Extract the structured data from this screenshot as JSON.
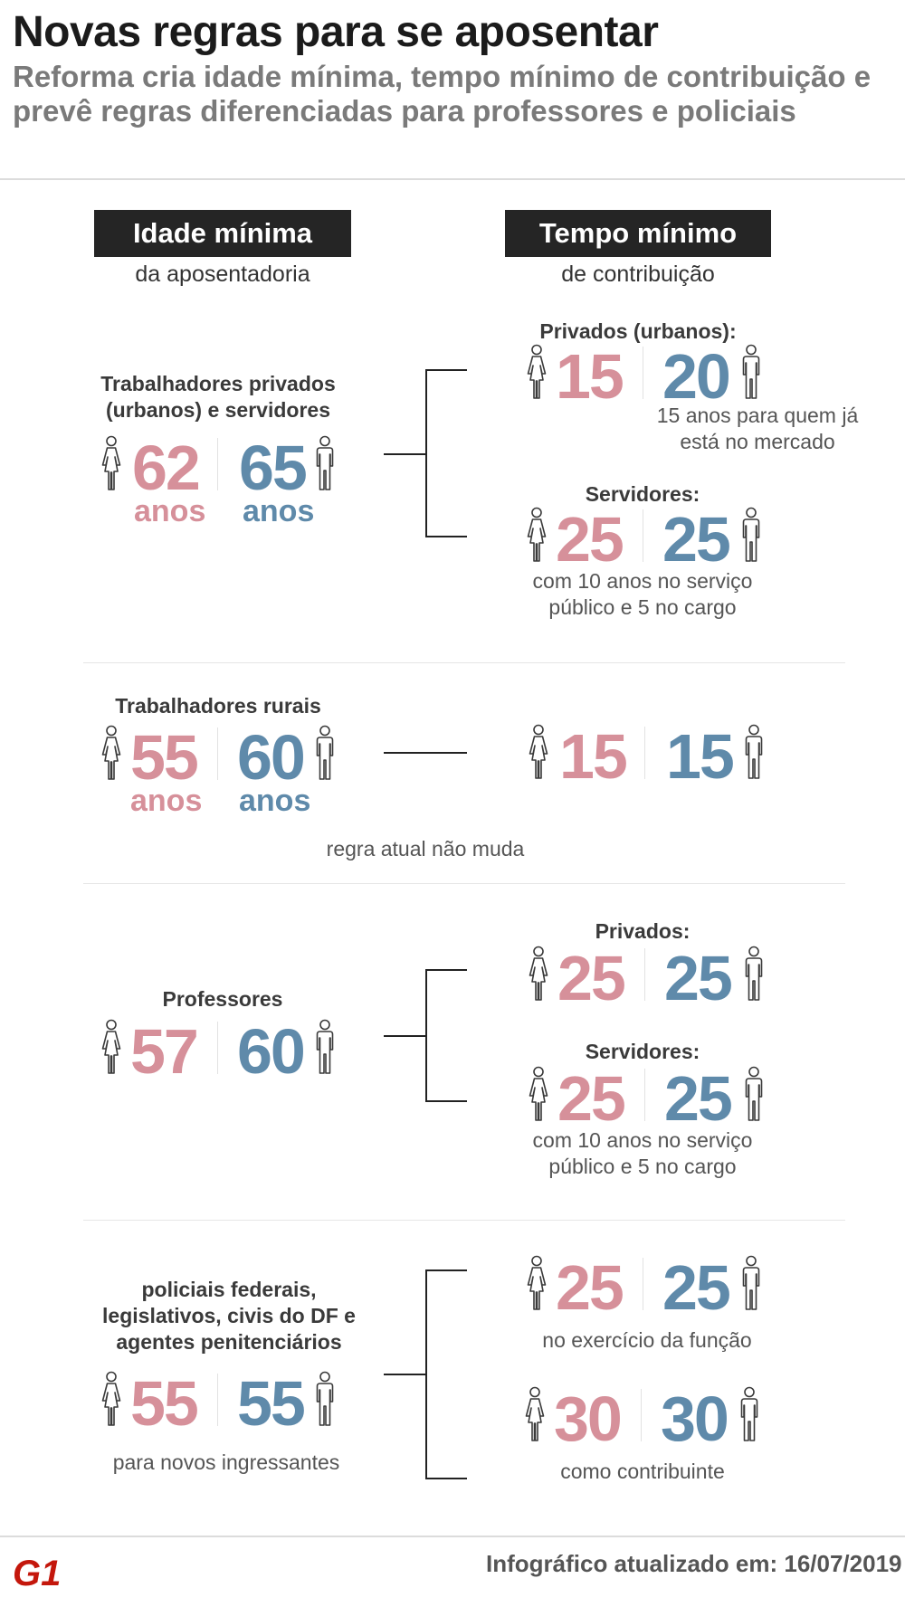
{
  "header": {
    "title": "Novas regras para se aposentar",
    "subtitle": "Reforma cria idade mínima, tempo mínimo de contribuição e prevê regras diferenciadas para professores e policiais"
  },
  "columns": {
    "age": {
      "label": "Idade mínima",
      "sub": "da aposentadoria"
    },
    "contrib": {
      "label": "Tempo mínimo",
      "sub": "de contribuição"
    }
  },
  "sections": {
    "urban": {
      "label": "Trabalhadores privados (urbanos) e servidores",
      "woman_age": "62",
      "man_age": "65",
      "unit": "anos",
      "private": {
        "label": "Privados (urbanos):",
        "woman": "15",
        "man": "20",
        "note": "15 anos para quem já está no mercado"
      },
      "servants": {
        "label": "Servidores:",
        "woman": "25",
        "man": "25",
        "note": "com 10 anos no serviço público e 5 no cargo"
      }
    },
    "rural": {
      "label": "Trabalhadores rurais",
      "woman_age": "55",
      "man_age": "60",
      "unit": "anos",
      "woman_contrib": "15",
      "man_contrib": "15",
      "note": "regra atual não muda"
    },
    "teachers": {
      "label": "Professores",
      "woman_age": "57",
      "man_age": "60",
      "private": {
        "label": "Privados:",
        "woman": "25",
        "man": "25"
      },
      "servants": {
        "label": "Servidores:",
        "woman": "25",
        "man": "25",
        "note": "com 10 anos no serviço público e 5 no cargo"
      }
    },
    "police": {
      "label": "policiais federais, legislativos, civis do DF e agentes penitenciários",
      "woman_age": "55",
      "man_age": "55",
      "age_note": "para novos ingressantes",
      "function": {
        "woman": "25",
        "man": "25",
        "note": "no exercício da função"
      },
      "contributor": {
        "woman": "30",
        "man": "30",
        "note": "como contribuinte"
      }
    }
  },
  "footer": {
    "updated": "Infográfico atualizado em: 16/07/2019",
    "logo": "G1"
  },
  "icons": {
    "woman": "woman-icon",
    "man": "man-icon"
  },
  "colors": {
    "women": "#d6909a",
    "men": "#5f8aaa",
    "logo": "#c4170c"
  }
}
